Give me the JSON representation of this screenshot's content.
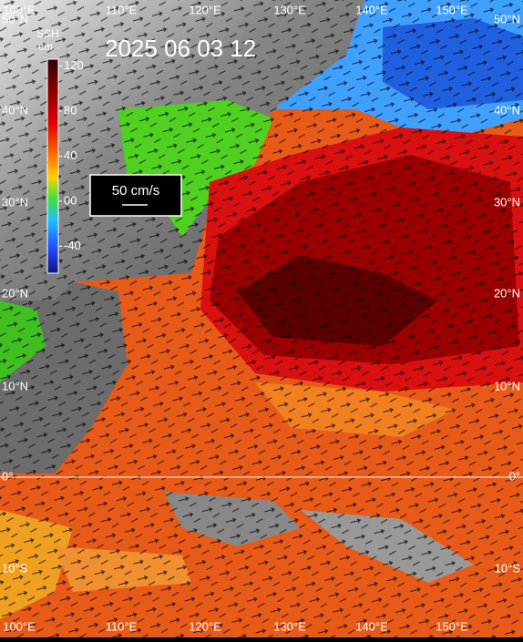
{
  "header": {
    "title": "2025 06 03 12"
  },
  "colorbar": {
    "label": "SSH",
    "unit": "cm",
    "range": [
      -64,
      126
    ],
    "ticks": [
      120,
      80,
      40,
      {
        "value": 0,
        "label": "00"
      },
      -40
    ]
  },
  "scale": {
    "label": "50 cm/s"
  },
  "axes": {
    "lat_left": [
      "50°N",
      "40°N",
      "30°N",
      "20°N",
      "10°N",
      "0°",
      "10°S"
    ],
    "lat_right": [
      "50°N",
      "40°N",
      "30°N",
      "20°N",
      "10°N",
      "0°",
      "10°S"
    ],
    "lon_top": [
      "100°E",
      "110°E",
      "120°E",
      "130°E",
      "140°E",
      "150°E"
    ],
    "lon_bottom": [
      "100°E",
      "110°E",
      "120°E",
      "130°E",
      "140°E",
      "150°E"
    ]
  }
}
